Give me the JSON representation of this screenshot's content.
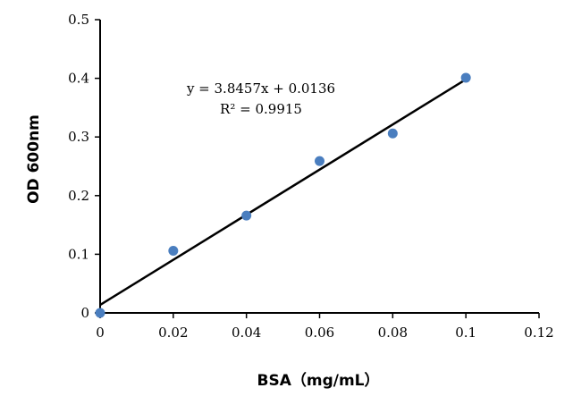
{
  "chart_data": {
    "type": "scatter",
    "xlabel": "BSA（mg/mL）",
    "ylabel": "OD 600nm",
    "xlim": [
      0,
      0.12
    ],
    "ylim": [
      0,
      0.5
    ],
    "x_ticks": [
      "0",
      "0.02",
      "0.04",
      "0.06",
      "0.08",
      "0.1",
      "0.12"
    ],
    "y_ticks": [
      "0",
      "0.1",
      "0.2",
      "0.3",
      "0.4",
      "0.5"
    ],
    "x_tick_values": [
      0,
      0.02,
      0.04,
      0.06,
      0.08,
      0.1,
      0.12
    ],
    "y_tick_values": [
      0,
      0.1,
      0.2,
      0.3,
      0.4,
      0.5
    ],
    "points": [
      {
        "x": 0,
        "y": 0
      },
      {
        "x": 0.02,
        "y": 0.106
      },
      {
        "x": 0.04,
        "y": 0.166
      },
      {
        "x": 0.06,
        "y": 0.259
      },
      {
        "x": 0.08,
        "y": 0.306
      },
      {
        "x": 0.1,
        "y": 0.401
      }
    ],
    "trendline": {
      "type": "linear",
      "slope": 3.8457,
      "intercept": 0.0136,
      "x_range": [
        0,
        0.1
      ],
      "equation": "y = 3.8457x + 0.0136",
      "r2_label": "R² = 0.9915"
    },
    "marker_color": "#4a7ebf",
    "line_color": "#000000",
    "grid": false,
    "legend": "none"
  }
}
